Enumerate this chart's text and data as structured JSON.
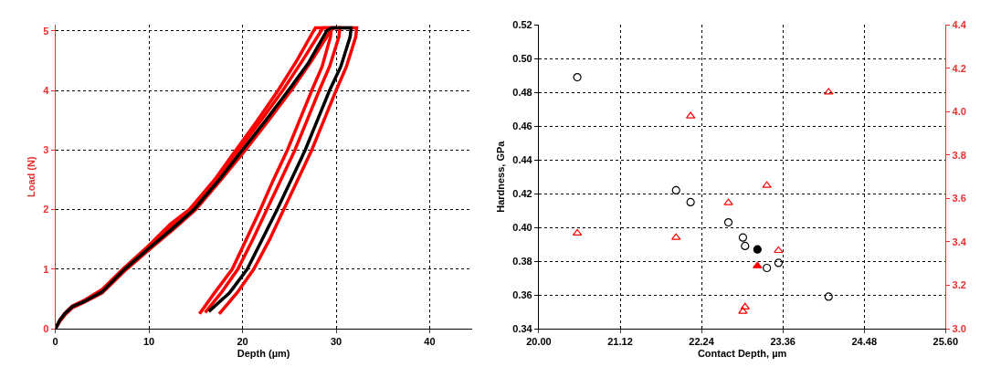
{
  "chart_data": [
    {
      "type": "line",
      "xlabel": "Depth (µm)",
      "ylabel": "Load (N)",
      "xlim": [
        0,
        44.5
      ],
      "ylim": [
        0,
        5.1
      ],
      "xticks": [
        0,
        10,
        20,
        30,
        40
      ],
      "yticks": [
        0,
        1,
        2,
        3,
        4,
        5
      ],
      "grid": true,
      "legend": false,
      "line_style": "solid",
      "series": [
        {
          "color": "#ff0000",
          "x": [
            0,
            0.5,
            1,
            1.8,
            3,
            5,
            7.2,
            10,
            12.3,
            14.3,
            17,
            19.3,
            21.6,
            23.8,
            25.8,
            27.6,
            27.8,
            29.5,
            29.4,
            28.5,
            27.4,
            26.1,
            24.8,
            23.3,
            21.9,
            20.4,
            18.9,
            17.0,
            15.4
          ],
          "values": [
            0,
            0.15,
            0.26,
            0.38,
            0.47,
            0.66,
            1.0,
            1.4,
            1.76,
            2.0,
            2.5,
            3.0,
            3.5,
            4.0,
            4.5,
            5.0,
            5.05,
            5.05,
            4.9,
            4.4,
            4.0,
            3.5,
            3.0,
            2.5,
            2.0,
            1.5,
            1.0,
            0.6,
            0.25
          ]
        },
        {
          "color": "#ff0000",
          "x": [
            0,
            0.5,
            1,
            1.8,
            3,
            5,
            7.6,
            10.2,
            12.7,
            15,
            17.7,
            20.3,
            22.8,
            25.2,
            27.4,
            29.4,
            29.8,
            32.2,
            32.1,
            31.1,
            30,
            28.7,
            27.4,
            25.9,
            24.4,
            22.9,
            21.2,
            19.4,
            17.5
          ],
          "values": [
            0,
            0.13,
            0.23,
            0.35,
            0.44,
            0.6,
            1.0,
            1.35,
            1.68,
            2.0,
            2.5,
            3.0,
            3.5,
            4.0,
            4.5,
            5.0,
            5.05,
            5.05,
            4.9,
            4.4,
            4.0,
            3.5,
            3.0,
            2.5,
            2.0,
            1.5,
            1.0,
            0.6,
            0.25
          ]
        },
        {
          "color": "#ff0000",
          "x": [
            0,
            0.5,
            1,
            1.8,
            3,
            5,
            7.3,
            10,
            12.4,
            14.5,
            17.2,
            19.6,
            22,
            24.3,
            26.4,
            28.4,
            28.6,
            30.4,
            30.3,
            29.3,
            28.2,
            26.9,
            25.6,
            24.1,
            22.6,
            21.1,
            19.5,
            17.7,
            16.0
          ],
          "values": [
            0,
            0.14,
            0.25,
            0.37,
            0.46,
            0.64,
            1.0,
            1.38,
            1.72,
            2.0,
            2.5,
            3.0,
            3.5,
            4.0,
            4.5,
            5.0,
            5.05,
            5.05,
            4.9,
            4.4,
            4.0,
            3.5,
            3.0,
            2.5,
            2.0,
            1.5,
            1.0,
            0.6,
            0.27
          ]
        },
        {
          "color": "#000000",
          "x": [
            0,
            0.5,
            1,
            1.8,
            3,
            5,
            7.4,
            10,
            12.5,
            14.8,
            17.5,
            20,
            22.5,
            24.9,
            27,
            29,
            29.5,
            31.6,
            31.5,
            30.5,
            29.3,
            28,
            26.7,
            25.2,
            23.7,
            22.1,
            20.5,
            18.6,
            16.4
          ],
          "values": [
            0,
            0.15,
            0.25,
            0.37,
            0.45,
            0.62,
            1.0,
            1.35,
            1.68,
            2.0,
            2.5,
            3.0,
            3.5,
            4.0,
            4.45,
            5.0,
            5.05,
            5.05,
            4.9,
            4.4,
            4.0,
            3.5,
            3.0,
            2.5,
            2.0,
            1.5,
            1.0,
            0.6,
            0.29
          ]
        }
      ]
    },
    {
      "type": "scatter",
      "xlabel": "Contact Depth, µm",
      "ylabel": "Hardness, GPa",
      "xlim": [
        20.0,
        25.6
      ],
      "xticks": [
        {
          "value": 20,
          "label": "20.00"
        },
        {
          "value": 21.12,
          "label": "21.12"
        },
        {
          "value": 22.24,
          "label": "22.24"
        },
        {
          "value": 23.36,
          "label": "23.36"
        },
        {
          "value": 24.48,
          "label": "24.48"
        },
        {
          "value": 25.6,
          "label": "25.60"
        }
      ],
      "ylim": [
        0.34,
        0.52
      ],
      "yticks": [
        {
          "value": 0.34,
          "label": "0.34"
        },
        {
          "value": 0.36,
          "label": "0.36"
        },
        {
          "value": 0.38,
          "label": "0.38"
        },
        {
          "value": 0.4,
          "label": "0.40"
        },
        {
          "value": 0.42,
          "label": "0.42"
        },
        {
          "value": 0.44,
          "label": "0.44"
        },
        {
          "value": 0.46,
          "label": "0.46"
        },
        {
          "value": 0.48,
          "label": "0.48"
        },
        {
          "value": 0.5,
          "label": "0.50"
        },
        {
          "value": 0.52,
          "label": "0.52"
        }
      ],
      "y2lim": [
        3.0,
        4.4
      ],
      "y2ticks": [
        {
          "value": 3.0,
          "label": "3.0"
        },
        {
          "value": 3.2,
          "label": "3.2"
        },
        {
          "value": 3.4,
          "label": "3.4"
        },
        {
          "value": 3.6,
          "label": "3.6"
        },
        {
          "value": 3.8,
          "label": "3.8"
        },
        {
          "value": 4.0,
          "label": "4.0"
        },
        {
          "value": 4.2,
          "label": "4.2"
        },
        {
          "value": 4.4,
          "label": "4.4"
        }
      ],
      "grid": true,
      "legend": false,
      "series": [
        {
          "color": "#000000",
          "marker": "circle",
          "x": [
            20.53,
            21.89,
            22.09,
            22.61,
            22.81,
            22.84,
            23.14,
            23.3,
            23.99
          ],
          "values": [
            0.489,
            0.422,
            0.415,
            0.403,
            0.394,
            0.389,
            0.376,
            0.379,
            0.359
          ]
        },
        {
          "color": "#000000",
          "marker": "circle",
          "x": [
            23.01
          ],
          "values": [
            0.387
          ]
        },
        {
          "color": "#ff0000",
          "marker": "triangle",
          "axis": "y2",
          "x": [
            20.53,
            21.89,
            22.09,
            22.61,
            22.81,
            22.84,
            23.14,
            23.3,
            23.99
          ],
          "values": [
            3.44,
            3.42,
            3.98,
            3.58,
            3.08,
            3.1,
            3.66,
            3.36,
            4.09
          ]
        },
        {
          "color": "#ff0000",
          "marker": "triangle",
          "axis": "y2",
          "x": [
            23.01
          ],
          "values": [
            3.29
          ]
        }
      ]
    }
  ]
}
